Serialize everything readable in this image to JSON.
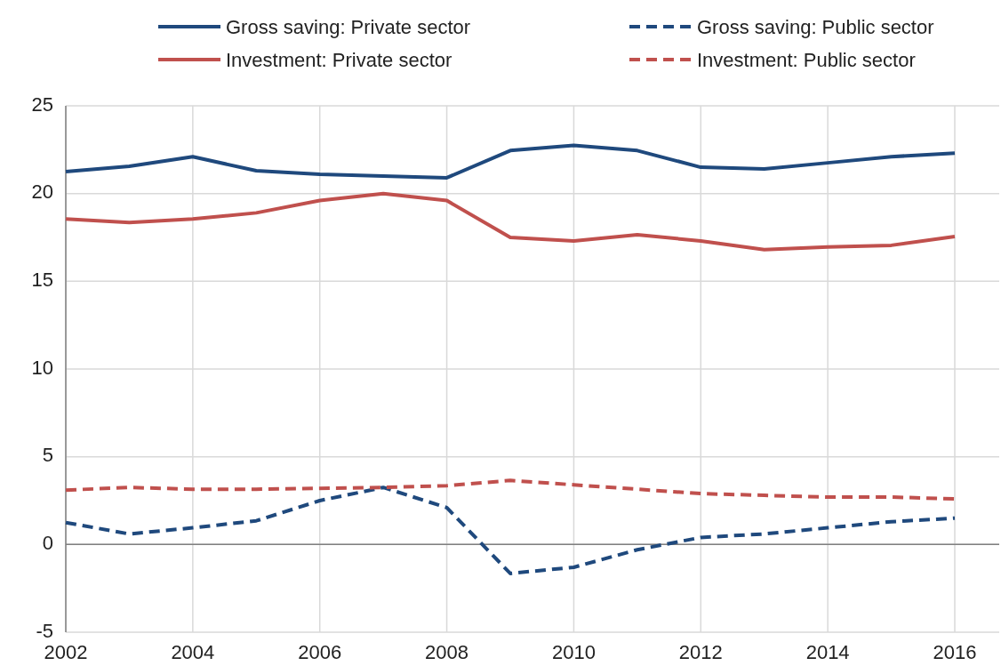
{
  "chart_data": {
    "type": "line",
    "x": [
      2002,
      2003,
      2004,
      2005,
      2006,
      2007,
      2008,
      2009,
      2010,
      2011,
      2012,
      2013,
      2014,
      2015,
      2016
    ],
    "series": [
      {
        "name": "Gross saving: Private sector",
        "color": "#1f497d",
        "line_style": "solid",
        "values": [
          21.25,
          21.55,
          22.1,
          21.3,
          21.1,
          21.0,
          20.9,
          22.45,
          22.75,
          22.45,
          21.5,
          21.4,
          21.75,
          22.1,
          22.3
        ]
      },
      {
        "name": "Gross saving: Public sector",
        "color": "#1f497d",
        "line_style": "dashed",
        "values": [
          1.25,
          0.6,
          0.95,
          1.35,
          2.5,
          3.25,
          2.1,
          -1.65,
          -1.3,
          -0.3,
          0.4,
          0.6,
          0.95,
          1.3,
          1.5
        ]
      },
      {
        "name": "Investment: Private sector",
        "color": "#c0504d",
        "line_style": "solid",
        "values": [
          18.55,
          18.35,
          18.55,
          18.9,
          19.6,
          20.0,
          19.6,
          17.5,
          17.3,
          17.65,
          17.3,
          16.8,
          16.95,
          17.05,
          17.55
        ]
      },
      {
        "name": "Investment: Public sector",
        "color": "#c0504d",
        "line_style": "dashed",
        "values": [
          3.1,
          3.25,
          3.15,
          3.15,
          3.2,
          3.25,
          3.35,
          3.65,
          3.4,
          3.15,
          2.9,
          2.8,
          2.7,
          2.7,
          2.6
        ]
      }
    ],
    "xlim": [
      2002,
      2016.7
    ],
    "xticks": [
      2002,
      2004,
      2006,
      2008,
      2010,
      2012,
      2014,
      2016
    ],
    "ylim": [
      -5,
      25
    ],
    "yticks": [
      -5,
      0,
      5,
      10,
      15,
      20,
      25
    ],
    "grid": true,
    "legend": "top"
  }
}
